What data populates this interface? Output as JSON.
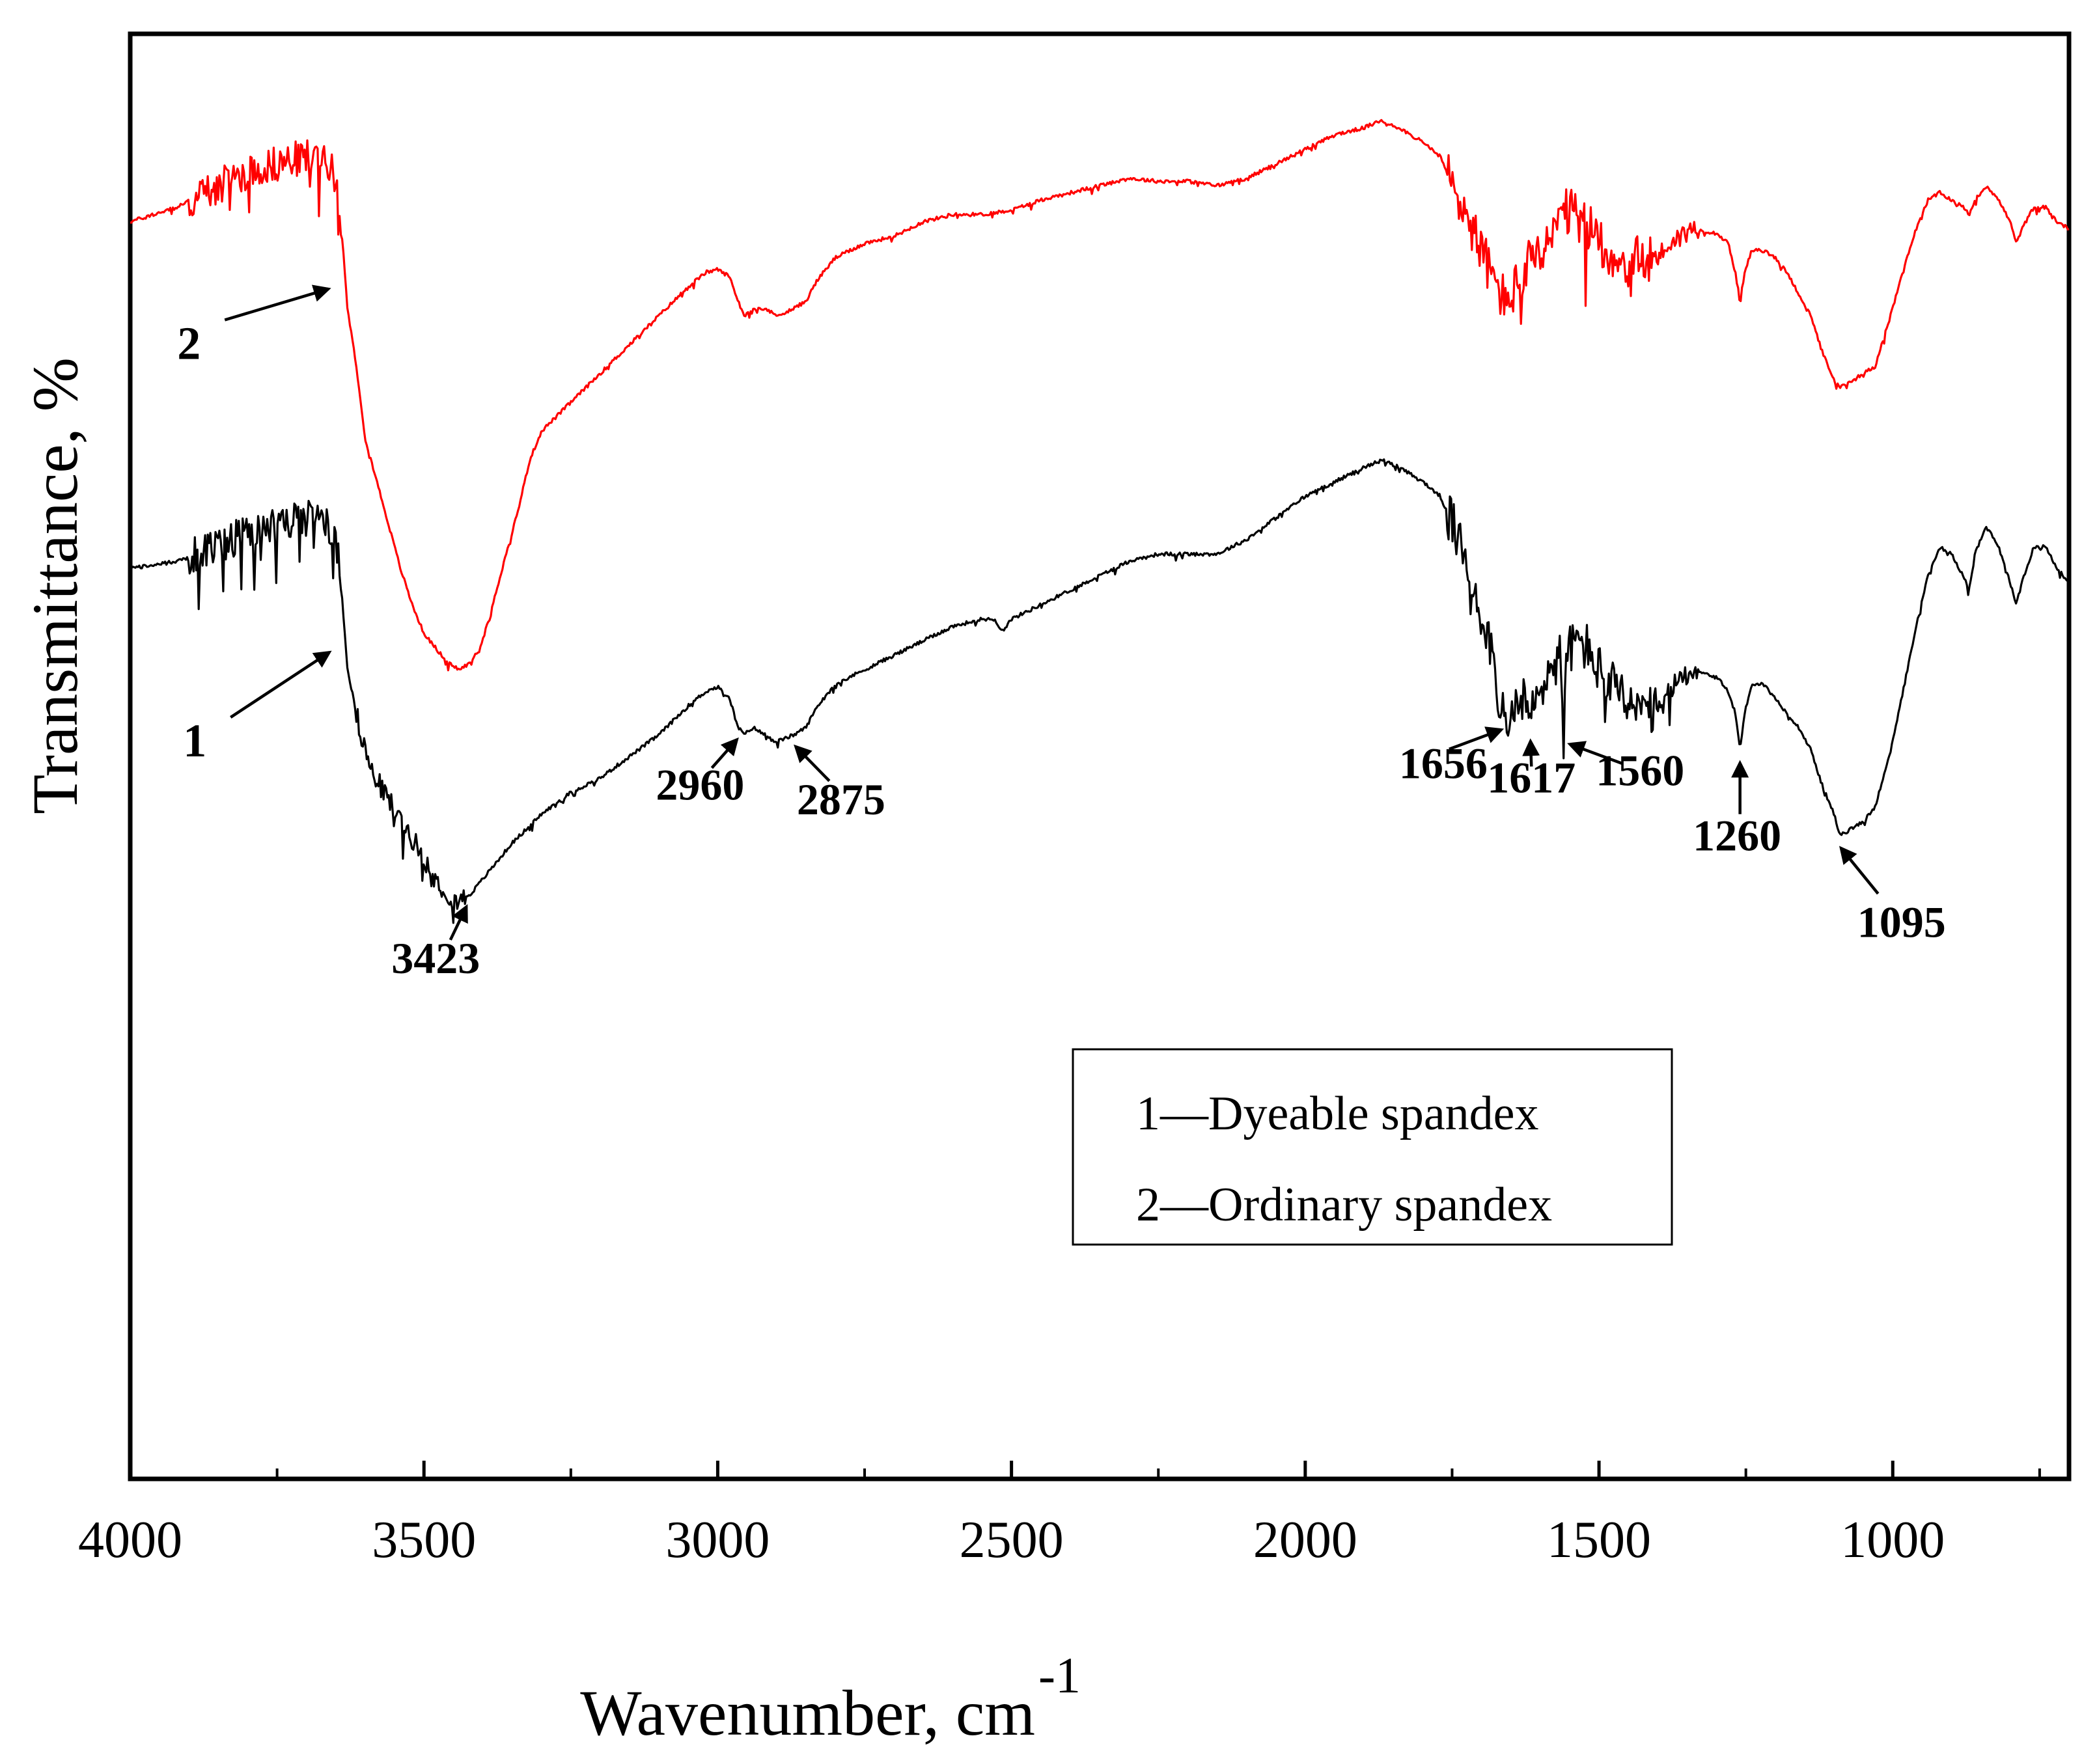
{
  "chart_data": {
    "type": "line",
    "title": "",
    "xlabel": "Wavenumber, cm",
    "xlabel_superscript": "-1",
    "ylabel": "Transmittance, %",
    "xlim": [
      4000,
      700
    ],
    "x_reversed": true,
    "x_ticks": [
      4000,
      3500,
      3000,
      2500,
      2000,
      1500,
      1000
    ],
    "x_minor_ticks": [
      3750,
      3250,
      2750,
      2250,
      1750,
      1250,
      750
    ],
    "y_ticks_shown": false,
    "ylim": [
      0,
      100
    ],
    "grid": false,
    "series": [
      {
        "name": "Ordinary spandex",
        "id": "2",
        "color": "#ff0000",
        "noise_ranges": [
          [
            3900,
            3640,
            2.5
          ],
          [
            1760,
            1400,
            3.5
          ],
          [
            1400,
            1330,
            1.5
          ],
          [
            1600,
            1500,
            2.5
          ]
        ],
        "points": [
          [
            4000,
            87
          ],
          [
            3920,
            88
          ],
          [
            3850,
            89.5
          ],
          [
            3800,
            90.5
          ],
          [
            3750,
            91
          ],
          [
            3700,
            91.5
          ],
          [
            3665,
            91.5
          ],
          [
            3645,
            89
          ],
          [
            3630,
            81
          ],
          [
            3615,
            77
          ],
          [
            3600,
            72
          ],
          [
            3580,
            69
          ],
          [
            3560,
            66
          ],
          [
            3540,
            63
          ],
          [
            3520,
            60.5
          ],
          [
            3500,
            58.5
          ],
          [
            3480,
            57.5
          ],
          [
            3460,
            56.5
          ],
          [
            3440,
            56
          ],
          [
            3420,
            56.5
          ],
          [
            3400,
            58
          ],
          [
            3380,
            61
          ],
          [
            3360,
            64
          ],
          [
            3340,
            67
          ],
          [
            3320,
            70.5
          ],
          [
            3300,
            72.5
          ],
          [
            3250,
            74.5
          ],
          [
            3200,
            76.5
          ],
          [
            3150,
            78.5
          ],
          [
            3100,
            80.5
          ],
          [
            3050,
            82.5
          ],
          [
            3020,
            83.5
          ],
          [
            3000,
            83.7
          ],
          [
            2980,
            83.2
          ],
          [
            2965,
            81.5
          ],
          [
            2955,
            80.5
          ],
          [
            2940,
            81
          ],
          [
            2920,
            81
          ],
          [
            2900,
            80.5
          ],
          [
            2870,
            81
          ],
          [
            2850,
            81.5
          ],
          [
            2830,
            83
          ],
          [
            2800,
            84.5
          ],
          [
            2750,
            85.5
          ],
          [
            2700,
            86
          ],
          [
            2650,
            87
          ],
          [
            2600,
            87.5
          ],
          [
            2550,
            87.5
          ],
          [
            2500,
            87.8
          ],
          [
            2450,
            88.5
          ],
          [
            2400,
            89
          ],
          [
            2350,
            89.5
          ],
          [
            2300,
            90
          ],
          [
            2250,
            89.8
          ],
          [
            2200,
            89.8
          ],
          [
            2150,
            89.5
          ],
          [
            2100,
            90
          ],
          [
            2050,
            91
          ],
          [
            2000,
            92
          ],
          [
            1950,
            93
          ],
          [
            1900,
            93.5
          ],
          [
            1870,
            94
          ],
          [
            1840,
            93.5
          ],
          [
            1800,
            92.5
          ],
          [
            1770,
            91.5
          ],
          [
            1750,
            89.5
          ],
          [
            1720,
            87
          ],
          [
            1700,
            85
          ],
          [
            1680,
            83
          ],
          [
            1660,
            81.5
          ],
          [
            1640,
            82.5
          ],
          [
            1620,
            84
          ],
          [
            1600,
            84.5
          ],
          [
            1580,
            86
          ],
          [
            1560,
            87.5
          ],
          [
            1540,
            87.5
          ],
          [
            1520,
            86.5
          ],
          [
            1500,
            86
          ],
          [
            1480,
            84.5
          ],
          [
            1450,
            84
          ],
          [
            1420,
            84.5
          ],
          [
            1400,
            84.5
          ],
          [
            1380,
            85.5
          ],
          [
            1360,
            86
          ],
          [
            1340,
            86.5
          ],
          [
            1300,
            86.2
          ],
          [
            1280,
            85.5
          ],
          [
            1268,
            83.5
          ],
          [
            1260,
            81.5
          ],
          [
            1252,
            83.5
          ],
          [
            1240,
            85
          ],
          [
            1220,
            85
          ],
          [
            1200,
            84.5
          ],
          [
            1180,
            83.5
          ],
          [
            1160,
            82
          ],
          [
            1140,
            80.5
          ],
          [
            1120,
            78
          ],
          [
            1100,
            76
          ],
          [
            1090,
            75.5
          ],
          [
            1070,
            76
          ],
          [
            1050,
            76.5
          ],
          [
            1030,
            77
          ],
          [
            1000,
            81
          ],
          [
            980,
            84
          ],
          [
            960,
            86.5
          ],
          [
            940,
            88.5
          ],
          [
            920,
            89
          ],
          [
            900,
            88.5
          ],
          [
            880,
            88
          ],
          [
            870,
            87.5
          ],
          [
            860,
            88.5
          ],
          [
            840,
            89.5
          ],
          [
            820,
            88.5
          ],
          [
            800,
            87
          ],
          [
            790,
            85.5
          ],
          [
            780,
            86.5
          ],
          [
            760,
            88
          ],
          [
            740,
            88
          ],
          [
            720,
            87
          ],
          [
            700,
            86.5
          ]
        ]
      },
      {
        "name": "Dyeable spandex",
        "id": "1",
        "color": "#000000",
        "noise_ranges": [
          [
            3900,
            3640,
            2.5
          ],
          [
            3620,
            3430,
            1.5
          ],
          [
            1760,
            1400,
            3.5
          ],
          [
            1400,
            1330,
            1.5
          ],
          [
            1600,
            1500,
            2.5
          ]
        ],
        "points": [
          [
            4000,
            63
          ],
          [
            3920,
            63.5
          ],
          [
            3850,
            64.5
          ],
          [
            3800,
            65.5
          ],
          [
            3750,
            66
          ],
          [
            3700,
            66.5
          ],
          [
            3665,
            66.5
          ],
          [
            3645,
            64
          ],
          [
            3630,
            56
          ],
          [
            3610,
            52
          ],
          [
            3590,
            49
          ],
          [
            3560,
            47
          ],
          [
            3530,
            45
          ],
          [
            3500,
            43
          ],
          [
            3480,
            41.5
          ],
          [
            3460,
            40.5
          ],
          [
            3440,
            40
          ],
          [
            3420,
            40.5
          ],
          [
            3400,
            41.5
          ],
          [
            3380,
            42.5
          ],
          [
            3350,
            44
          ],
          [
            3300,
            46
          ],
          [
            3250,
            47.5
          ],
          [
            3200,
            48.5
          ],
          [
            3150,
            50
          ],
          [
            3100,
            51.5
          ],
          [
            3050,
            53.5
          ],
          [
            3020,
            54.5
          ],
          [
            3000,
            54.8
          ],
          [
            2980,
            54
          ],
          [
            2965,
            52
          ],
          [
            2955,
            51.5
          ],
          [
            2940,
            52
          ],
          [
            2920,
            51.5
          ],
          [
            2900,
            51
          ],
          [
            2870,
            51.5
          ],
          [
            2850,
            52
          ],
          [
            2830,
            53.5
          ],
          [
            2800,
            55
          ],
          [
            2750,
            56
          ],
          [
            2700,
            57
          ],
          [
            2650,
            58
          ],
          [
            2600,
            59
          ],
          [
            2550,
            59.5
          ],
          [
            2530,
            59.5
          ],
          [
            2515,
            58.7
          ],
          [
            2500,
            59.5
          ],
          [
            2450,
            60.5
          ],
          [
            2400,
            61.5
          ],
          [
            2350,
            62.5
          ],
          [
            2300,
            63.5
          ],
          [
            2250,
            64
          ],
          [
            2200,
            64
          ],
          [
            2150,
            64
          ],
          [
            2100,
            65
          ],
          [
            2050,
            66.5
          ],
          [
            2000,
            68
          ],
          [
            1950,
            69
          ],
          [
            1900,
            70
          ],
          [
            1870,
            70.5
          ],
          [
            1840,
            70
          ],
          [
            1800,
            69
          ],
          [
            1770,
            68
          ],
          [
            1750,
            66
          ],
          [
            1720,
            63
          ],
          [
            1700,
            60
          ],
          [
            1680,
            57
          ],
          [
            1666,
            53
          ],
          [
            1656,
            51.5
          ],
          [
            1645,
            53
          ],
          [
            1630,
            54
          ],
          [
            1617,
            52.5
          ],
          [
            1605,
            54
          ],
          [
            1590,
            55.5
          ],
          [
            1575,
            56.5
          ],
          [
            1565,
            57
          ],
          [
            1560,
            51
          ],
          [
            1555,
            57
          ],
          [
            1540,
            58
          ],
          [
            1520,
            57.5
          ],
          [
            1500,
            56
          ],
          [
            1480,
            55
          ],
          [
            1450,
            53.5
          ],
          [
            1420,
            53
          ],
          [
            1400,
            53
          ],
          [
            1380,
            54.5
          ],
          [
            1360,
            55.5
          ],
          [
            1340,
            56
          ],
          [
            1300,
            55.5
          ],
          [
            1280,
            54.5
          ],
          [
            1268,
            53
          ],
          [
            1260,
            50.5
          ],
          [
            1252,
            53
          ],
          [
            1240,
            55
          ],
          [
            1220,
            55
          ],
          [
            1200,
            54
          ],
          [
            1180,
            53
          ],
          [
            1160,
            52
          ],
          [
            1140,
            50.5
          ],
          [
            1120,
            48
          ],
          [
            1100,
            46
          ],
          [
            1090,
            44.5
          ],
          [
            1070,
            45
          ],
          [
            1050,
            45.5
          ],
          [
            1030,
            46.5
          ],
          [
            1000,
            51
          ],
          [
            980,
            55
          ],
          [
            960,
            59
          ],
          [
            940,
            62.5
          ],
          [
            920,
            64.5
          ],
          [
            900,
            64
          ],
          [
            880,
            62.5
          ],
          [
            870,
            61.5
          ],
          [
            860,
            64
          ],
          [
            840,
            66
          ],
          [
            820,
            64.5
          ],
          [
            800,
            62
          ],
          [
            790,
            60.5
          ],
          [
            780,
            62
          ],
          [
            760,
            64.5
          ],
          [
            740,
            64.5
          ],
          [
            720,
            63
          ],
          [
            700,
            62
          ]
        ]
      }
    ],
    "curve_labels": [
      {
        "text": "2",
        "target": [
          3650,
          82.5
        ],
        "label_pos": [
          3900,
          77.5
        ]
      },
      {
        "text": "1",
        "target": [
          3650,
          57.5
        ],
        "label_pos": [
          3890,
          50
        ]
      }
    ],
    "annotations": [
      {
        "text": "3423",
        "target": [
          3423,
          40
        ],
        "label_pos": [
          3480,
          35
        ],
        "arrow_from": [
          3455,
          37.3
        ]
      },
      {
        "text": "2960",
        "target": [
          2960,
          51.5
        ],
        "label_pos": [
          3030,
          47
        ],
        "arrow_from": [
          3010,
          49.2
        ]
      },
      {
        "text": "2875",
        "target": [
          2875,
          51
        ],
        "label_pos": [
          2790,
          46
        ],
        "arrow_from": [
          2810,
          48.3
        ]
      },
      {
        "text": "1656",
        "target": [
          1656,
          52
        ],
        "label_pos": [
          1765,
          48.5
        ],
        "arrow_from": [
          1755,
          50.5
        ]
      },
      {
        "text": "1617",
        "target": [
          1617,
          51.5
        ],
        "label_pos": [
          1615,
          47.5
        ],
        "arrow_from": [
          1615,
          49.3
        ]
      },
      {
        "text": "1560",
        "target": [
          1560,
          51
        ],
        "label_pos": [
          1430,
          48
        ],
        "arrow_from": [
          1460,
          49.5
        ]
      },
      {
        "text": "1260",
        "target": [
          1260,
          50
        ],
        "label_pos": [
          1265,
          43.5
        ],
        "arrow_from": [
          1260,
          46
        ]
      },
      {
        "text": "1095",
        "target": [
          1095,
          44
        ],
        "label_pos": [
          985,
          37.5
        ],
        "arrow_from": [
          1025,
          40.5
        ]
      }
    ],
    "legend": {
      "position": "lower-center-right",
      "entries": [
        "1—Dyeable spandex",
        "2—Ordinary spandex"
      ]
    }
  }
}
